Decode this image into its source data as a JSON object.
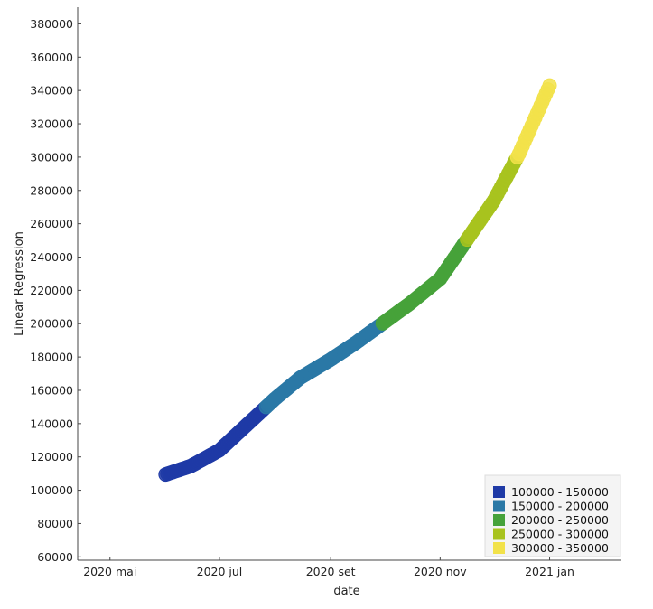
{
  "chart_data": {
    "type": "scatter",
    "title": "",
    "xlabel": "date",
    "ylabel": "Linear Regression",
    "x_ticks": [
      "2020 mai",
      "2020 jul",
      "2020 set",
      "2020 nov",
      "2021 jan"
    ],
    "x_tick_dates": [
      "2020-05-01",
      "2020-07-01",
      "2020-09-01",
      "2020-11-01",
      "2021-01-01"
    ],
    "xlim": [
      "2020-04-13",
      "2021-02-10"
    ],
    "ylim": [
      58000,
      390000
    ],
    "y_ticks": [
      60000,
      80000,
      100000,
      120000,
      140000,
      160000,
      180000,
      200000,
      220000,
      240000,
      260000,
      280000,
      300000,
      320000,
      340000,
      360000,
      380000
    ],
    "x_range": [
      "2020-06-01",
      "2021-01-01"
    ],
    "grid": false,
    "legend_position": "bottom-right",
    "points": [
      {
        "x": "2020-06-01",
        "y": 109500
      },
      {
        "x": "2020-06-15",
        "y": 114500
      },
      {
        "x": "2020-07-01",
        "y": 124000
      },
      {
        "x": "2020-07-15",
        "y": 138000
      },
      {
        "x": "2020-08-01",
        "y": 155000
      },
      {
        "x": "2020-08-15",
        "y": 167500
      },
      {
        "x": "2020-09-01",
        "y": 178500
      },
      {
        "x": "2020-09-15",
        "y": 188500
      },
      {
        "x": "2020-10-01",
        "y": 201000
      },
      {
        "x": "2020-10-15",
        "y": 212000
      },
      {
        "x": "2020-11-01",
        "y": 227000
      },
      {
        "x": "2020-11-15",
        "y": 249000
      },
      {
        "x": "2020-12-01",
        "y": 274000
      },
      {
        "x": "2020-12-15",
        "y": 302000
      },
      {
        "x": "2021-01-01",
        "y": 343000
      }
    ],
    "color_bins": [
      {
        "label": "100000 - 150000",
        "min": 100000,
        "max": 150000,
        "color": "#1f3aa6"
      },
      {
        "label": "150000 - 200000",
        "min": 150000,
        "max": 200000,
        "color": "#2a78a6"
      },
      {
        "label": "200000 - 250000",
        "min": 200000,
        "max": 250000,
        "color": "#46a23a"
      },
      {
        "label": "250000 - 300000",
        "min": 250000,
        "max": 300000,
        "color": "#a8c31e"
      },
      {
        "label": "300000 - 350000",
        "min": 300000,
        "max": 350000,
        "color": "#f2e24a"
      }
    ]
  }
}
